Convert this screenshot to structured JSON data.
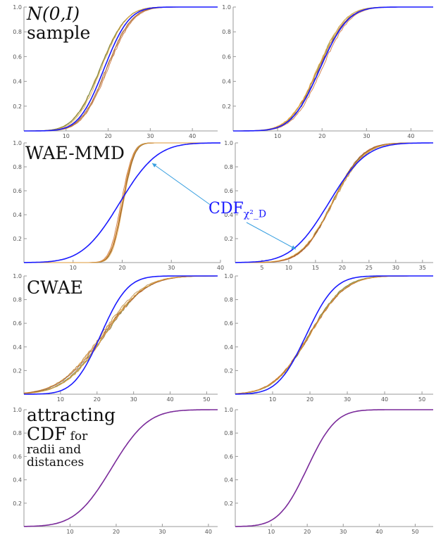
{
  "labels": {
    "row1_line1": "N(0,I)",
    "row1_line2": "sample",
    "row2": "WAE-MMD",
    "row3": "CWAE",
    "row4_line1": "attracting",
    "row4_line2a": "CDF",
    "row4_line2b": "for",
    "row4_line3a": "radii",
    "row4_line3b": "and",
    "row4_line4": "distances",
    "callout": "CDF",
    "callout_sub": "χ²_D"
  },
  "colors": {
    "reference_curve": "#1a1aff",
    "sample_curves": [
      "#e8a33c",
      "#8b7d3a",
      "#c96e3a",
      "#6b8e4e",
      "#b8863b",
      "#a0522d"
    ],
    "attracting_curve": "#7a2a9a",
    "arrow": "#3aa0e0"
  },
  "chart_data": [
    {
      "type": "line",
      "panel": "row1-left",
      "xlim": [
        0,
        46
      ],
      "ylim": [
        0,
        1.0
      ],
      "xticks": [
        10,
        20,
        30,
        40
      ],
      "yticks": [
        0.2,
        0.4,
        0.6,
        0.8,
        1.0
      ],
      "grid": false,
      "series": [
        {
          "role": "reference",
          "mean": 19.0,
          "sd": 4.7
        },
        {
          "role": "samples",
          "count": 7,
          "mean": 19.0,
          "sd": 4.7,
          "spread": 1.0
        }
      ]
    },
    {
      "type": "line",
      "panel": "row1-right",
      "xlim": [
        0,
        45
      ],
      "ylim": [
        0,
        1.0
      ],
      "xticks": [
        10,
        20,
        30,
        40
      ],
      "yticks": [
        0.2,
        0.4,
        0.6,
        0.8,
        1.0
      ],
      "grid": false,
      "series": [
        {
          "role": "reference",
          "mean": 19.5,
          "sd": 5.0
        },
        {
          "role": "samples",
          "count": 7,
          "mean": 19.5,
          "sd": 5.0,
          "spread": 0.6
        }
      ]
    },
    {
      "type": "line",
      "panel": "row2-left",
      "xlim": [
        0,
        40
      ],
      "ylim": [
        0,
        1.0
      ],
      "xticks": [
        10,
        20,
        30,
        40
      ],
      "yticks": [
        0.2,
        0.4,
        0.6,
        0.8,
        1.0
      ],
      "grid": false,
      "series": [
        {
          "role": "reference",
          "mean": 19.5,
          "sd": 6.0
        },
        {
          "role": "samples",
          "count": 7,
          "mean": 20.0,
          "sd": 1.8,
          "spread": 0.3
        }
      ]
    },
    {
      "type": "line",
      "panel": "row2-right",
      "xlim": [
        0,
        37
      ],
      "ylim": [
        0,
        1.0
      ],
      "xticks": [
        5,
        10,
        15,
        20,
        25,
        30,
        35
      ],
      "yticks": [
        0.2,
        0.4,
        0.6,
        0.8,
        1.0
      ],
      "grid": false,
      "series": [
        {
          "role": "reference",
          "mean": 17.5,
          "sd": 5.5
        },
        {
          "role": "samples",
          "count": 7,
          "mean": 18.2,
          "sd": 4.5,
          "spread": 0.2
        }
      ]
    },
    {
      "type": "line",
      "panel": "row3-left",
      "xlim": [
        0,
        53
      ],
      "ylim": [
        0,
        1.0
      ],
      "xticks": [
        10,
        20,
        30,
        40,
        50
      ],
      "yticks": [
        0.2,
        0.4,
        0.6,
        0.8,
        1.0
      ],
      "grid": false,
      "series": [
        {
          "role": "reference",
          "mean": 21.0,
          "sd": 5.8
        },
        {
          "role": "samples",
          "count": 7,
          "mean": 21.5,
          "sd": 9.0,
          "spread": 0.8
        }
      ]
    },
    {
      "type": "line",
      "panel": "row3-right",
      "xlim": [
        0,
        53
      ],
      "ylim": [
        0,
        1.0
      ],
      "xticks": [
        10,
        20,
        30,
        40,
        50
      ],
      "yticks": [
        0.2,
        0.4,
        0.6,
        0.8,
        1.0
      ],
      "grid": false,
      "series": [
        {
          "role": "reference",
          "mean": 19.0,
          "sd": 6.0
        },
        {
          "role": "samples",
          "count": 7,
          "mean": 19.8,
          "sd": 7.5,
          "spread": 0.15
        }
      ]
    },
    {
      "type": "line",
      "panel": "row4-left",
      "xlim": [
        0,
        42
      ],
      "ylim": [
        0,
        1.0
      ],
      "xticks": [
        10,
        20,
        30,
        40
      ],
      "yticks": [
        0.2,
        0.4,
        0.6,
        0.8,
        1.0
      ],
      "grid": false,
      "series": [
        {
          "role": "attracting",
          "mean": 19.0,
          "sd": 6.2
        }
      ]
    },
    {
      "type": "line",
      "panel": "row4-right",
      "xlim": [
        0,
        55
      ],
      "ylim": [
        0,
        1.0
      ],
      "xticks": [
        10,
        20,
        30,
        40,
        50
      ],
      "yticks": [
        0.2,
        0.4,
        0.6,
        0.8,
        1.0
      ],
      "grid": false,
      "series": [
        {
          "role": "attracting",
          "mean": 20.0,
          "sd": 6.2
        }
      ]
    }
  ]
}
